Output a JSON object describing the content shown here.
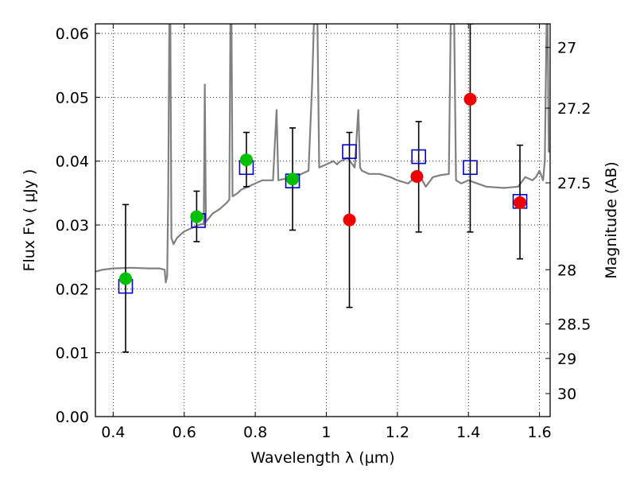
{
  "chart_data": {
    "type": "scatter",
    "title": "",
    "xlabel": "Wavelength  λ (μm)",
    "ylabel": "Flux  Fν  ( μJy )",
    "y2label": "Magnitude (AB)",
    "xlim": [
      0.35,
      1.63
    ],
    "ylim": [
      0.0,
      0.0615
    ],
    "grid": true,
    "x_ticks": [
      0.4,
      0.6,
      0.8,
      1.0,
      1.2,
      1.4,
      1.6
    ],
    "x_tick_labels": [
      "0.4",
      "0.6",
      "0.8",
      "1",
      "1.2",
      "1.4",
      "1.6"
    ],
    "y_ticks": [
      0.0,
      0.01,
      0.02,
      0.03,
      0.04,
      0.05,
      0.06
    ],
    "y_tick_labels": [
      "0.00",
      "0.01",
      "0.02",
      "0.03",
      "0.04",
      "0.05",
      "0.06"
    ],
    "y2_ticks": [
      {
        "label": "27",
        "flux": 0.0578
      },
      {
        "label": "27.2",
        "flux": 0.0483
      },
      {
        "label": "27.5",
        "flux": 0.0366
      },
      {
        "label": "28",
        "flux": 0.023
      },
      {
        "label": "28.5",
        "flux": 0.0145
      },
      {
        "label": "29",
        "flux": 0.0091
      },
      {
        "label": "30",
        "flux": 0.0036
      }
    ],
    "colors": {
      "model": "#808080",
      "observed": "#00c000",
      "limit": "#ee0000",
      "model_band": "#0000cc",
      "errorbar": "#000000"
    },
    "series": [
      {
        "type": "line",
        "points": [
          [
            0.35,
            0.0227
          ],
          [
            0.37,
            0.023
          ],
          [
            0.4,
            0.0232
          ],
          [
            0.45,
            0.0233
          ],
          [
            0.5,
            0.0232
          ],
          [
            0.53,
            0.0232
          ],
          [
            0.545,
            0.023
          ],
          [
            0.548,
            0.021
          ],
          [
            0.552,
            0.022
          ],
          [
            0.555,
            0.035
          ],
          [
            0.558,
            0.0615
          ],
          [
            0.561,
            0.0615
          ],
          [
            0.564,
            0.028
          ],
          [
            0.57,
            0.027
          ],
          [
            0.58,
            0.028
          ],
          [
            0.6,
            0.029
          ],
          [
            0.62,
            0.0295
          ],
          [
            0.64,
            0.03
          ],
          [
            0.655,
            0.0302
          ],
          [
            0.658,
            0.052
          ],
          [
            0.661,
            0.0305
          ],
          [
            0.68,
            0.0318
          ],
          [
            0.7,
            0.0325
          ],
          [
            0.72,
            0.0335
          ],
          [
            0.727,
            0.034
          ],
          [
            0.73,
            0.0615
          ],
          [
            0.733,
            0.0615
          ],
          [
            0.736,
            0.0345
          ],
          [
            0.745,
            0.0348
          ],
          [
            0.75,
            0.035
          ],
          [
            0.76,
            0.0355
          ],
          [
            0.78,
            0.036
          ],
          [
            0.8,
            0.0365
          ],
          [
            0.82,
            0.037
          ],
          [
            0.85,
            0.037
          ],
          [
            0.86,
            0.048
          ],
          [
            0.865,
            0.037
          ],
          [
            0.88,
            0.0372
          ],
          [
            0.9,
            0.0372
          ],
          [
            0.93,
            0.038
          ],
          [
            0.95,
            0.0385
          ],
          [
            0.96,
            0.052
          ],
          [
            0.965,
            0.0615
          ],
          [
            0.975,
            0.0615
          ],
          [
            0.98,
            0.039
          ],
          [
            1.0,
            0.0395
          ],
          [
            1.02,
            0.04
          ],
          [
            1.03,
            0.0395
          ],
          [
            1.04,
            0.04
          ],
          [
            1.06,
            0.0405
          ],
          [
            1.08,
            0.039
          ],
          [
            1.09,
            0.048
          ],
          [
            1.095,
            0.039
          ],
          [
            1.1,
            0.0385
          ],
          [
            1.12,
            0.038
          ],
          [
            1.15,
            0.038
          ],
          [
            1.18,
            0.0375
          ],
          [
            1.2,
            0.037
          ],
          [
            1.23,
            0.0365
          ],
          [
            1.26,
            0.038
          ],
          [
            1.28,
            0.036
          ],
          [
            1.3,
            0.0375
          ],
          [
            1.32,
            0.0378
          ],
          [
            1.345,
            0.038
          ],
          [
            1.35,
            0.0615
          ],
          [
            1.36,
            0.0615
          ],
          [
            1.365,
            0.037
          ],
          [
            1.38,
            0.0365
          ],
          [
            1.4,
            0.037
          ],
          [
            1.45,
            0.036
          ],
          [
            1.5,
            0.0358
          ],
          [
            1.54,
            0.036
          ],
          [
            1.56,
            0.0375
          ],
          [
            1.58,
            0.037
          ],
          [
            1.59,
            0.0375
          ],
          [
            1.6,
            0.0385
          ],
          [
            1.61,
            0.037
          ],
          [
            1.615,
            0.04
          ],
          [
            1.62,
            0.0615
          ],
          [
            1.623,
            0.0615
          ],
          [
            1.626,
            0.0415
          ],
          [
            1.63,
            0.0415
          ]
        ]
      },
      {
        "type": "errorbars",
        "points": [
          {
            "x": 0.435,
            "lo": 0.0101,
            "hi": 0.0332
          },
          {
            "x": 0.635,
            "lo": 0.0274,
            "hi": 0.0353
          },
          {
            "x": 0.775,
            "lo": 0.036,
            "hi": 0.0445
          },
          {
            "x": 0.905,
            "lo": 0.0292,
            "hi": 0.0452
          },
          {
            "x": 1.065,
            "lo": 0.0171,
            "hi": 0.0445
          },
          {
            "x": 1.26,
            "lo": 0.0289,
            "hi": 0.0462
          },
          {
            "x": 1.405,
            "lo": 0.0289,
            "hi": 0.0615
          },
          {
            "x": 1.545,
            "lo": 0.0247,
            "hi": 0.0425
          }
        ]
      },
      {
        "type": "scatter",
        "marker": "square",
        "points": [
          [
            0.435,
            0.0204
          ],
          [
            0.64,
            0.0307
          ],
          [
            0.775,
            0.039
          ],
          [
            0.905,
            0.0369
          ],
          [
            1.065,
            0.0415
          ],
          [
            1.26,
            0.0407
          ],
          [
            1.405,
            0.039
          ],
          [
            1.545,
            0.0337
          ]
        ]
      },
      {
        "type": "scatter",
        "marker": "circle",
        "color": "#00c000",
        "points": [
          [
            0.435,
            0.0216
          ],
          [
            0.635,
            0.0313
          ],
          [
            0.775,
            0.0402
          ],
          [
            0.905,
            0.0372
          ]
        ]
      },
      {
        "type": "scatter",
        "marker": "circle",
        "color": "#ee0000",
        "points": [
          [
            1.065,
            0.0308
          ],
          [
            1.255,
            0.0376
          ],
          [
            1.405,
            0.0497
          ],
          [
            1.545,
            0.0335
          ]
        ]
      }
    ]
  }
}
